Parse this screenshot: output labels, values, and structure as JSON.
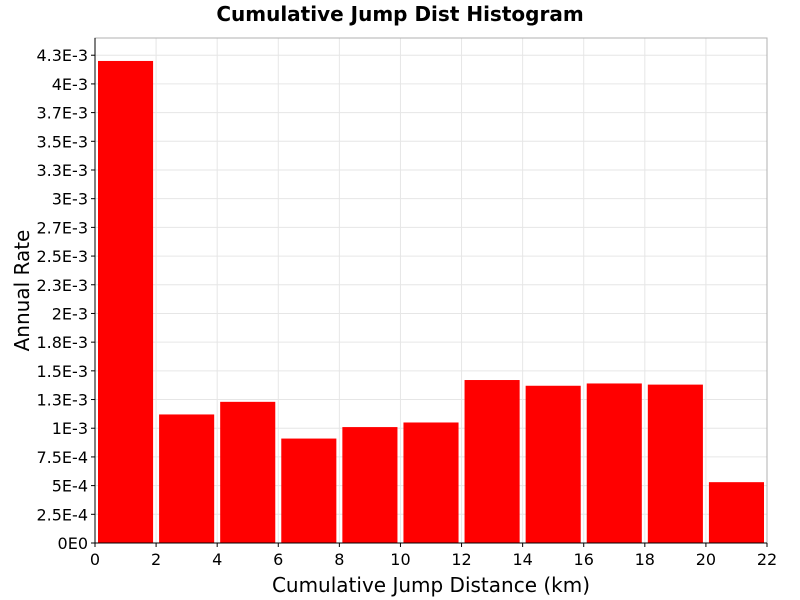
{
  "chart_data": {
    "type": "bar",
    "title": "Cumulative Jump Dist Histogram",
    "xlabel": "Cumulative Jump Distance (km)",
    "ylabel": "Annual Rate",
    "xlim": [
      0,
      22
    ],
    "ylim": [
      0,
      0.0044
    ],
    "grid": true,
    "x_ticks": [
      {
        "value": 0,
        "label": "0"
      },
      {
        "value": 2,
        "label": "2"
      },
      {
        "value": 4,
        "label": "4"
      },
      {
        "value": 6,
        "label": "6"
      },
      {
        "value": 8,
        "label": "8"
      },
      {
        "value": 10,
        "label": "10"
      },
      {
        "value": 12,
        "label": "12"
      },
      {
        "value": 14,
        "label": "14"
      },
      {
        "value": 16,
        "label": "16"
      },
      {
        "value": 18,
        "label": "18"
      },
      {
        "value": 20,
        "label": "20"
      },
      {
        "value": 22,
        "label": "22"
      }
    ],
    "y_ticks": [
      {
        "value": 0,
        "label": "0E0"
      },
      {
        "value": 0.00025,
        "label": "2.5E-4"
      },
      {
        "value": 0.0005,
        "label": "5E-4"
      },
      {
        "value": 0.00075,
        "label": "7.5E-4"
      },
      {
        "value": 0.001,
        "label": "1E-3"
      },
      {
        "value": 0.00125,
        "label": "1.3E-3"
      },
      {
        "value": 0.0015,
        "label": "1.5E-3"
      },
      {
        "value": 0.00175,
        "label": "1.8E-3"
      },
      {
        "value": 0.002,
        "label": "2E-3"
      },
      {
        "value": 0.00225,
        "label": "2.3E-3"
      },
      {
        "value": 0.0025,
        "label": "2.5E-3"
      },
      {
        "value": 0.00275,
        "label": "2.7E-3"
      },
      {
        "value": 0.003,
        "label": "3E-3"
      },
      {
        "value": 0.00325,
        "label": "3.3E-3"
      },
      {
        "value": 0.0035,
        "label": "3.5E-3"
      },
      {
        "value": 0.00375,
        "label": "3.7E-3"
      },
      {
        "value": 0.004,
        "label": "4E-3"
      },
      {
        "value": 0.00425,
        "label": "4.3E-3"
      }
    ],
    "bars": [
      {
        "x0": 0,
        "x1": 2,
        "value": 0.0042
      },
      {
        "x0": 2,
        "x1": 4,
        "value": 0.00112
      },
      {
        "x0": 4,
        "x1": 6,
        "value": 0.00123
      },
      {
        "x0": 6,
        "x1": 8,
        "value": 0.00091
      },
      {
        "x0": 8,
        "x1": 10,
        "value": 0.00101
      },
      {
        "x0": 10,
        "x1": 12,
        "value": 0.00105
      },
      {
        "x0": 12,
        "x1": 14,
        "value": 0.00142
      },
      {
        "x0": 14,
        "x1": 16,
        "value": 0.00137
      },
      {
        "x0": 16,
        "x1": 18,
        "value": 0.00139
      },
      {
        "x0": 18,
        "x1": 20,
        "value": 0.00138
      },
      {
        "x0": 20,
        "x1": 22,
        "value": 0.00053
      }
    ],
    "colors": {
      "bar": "#ff0000",
      "grid": "#e6e6e6",
      "axis": "#000000",
      "plot_border": "#b0b0b0"
    }
  }
}
